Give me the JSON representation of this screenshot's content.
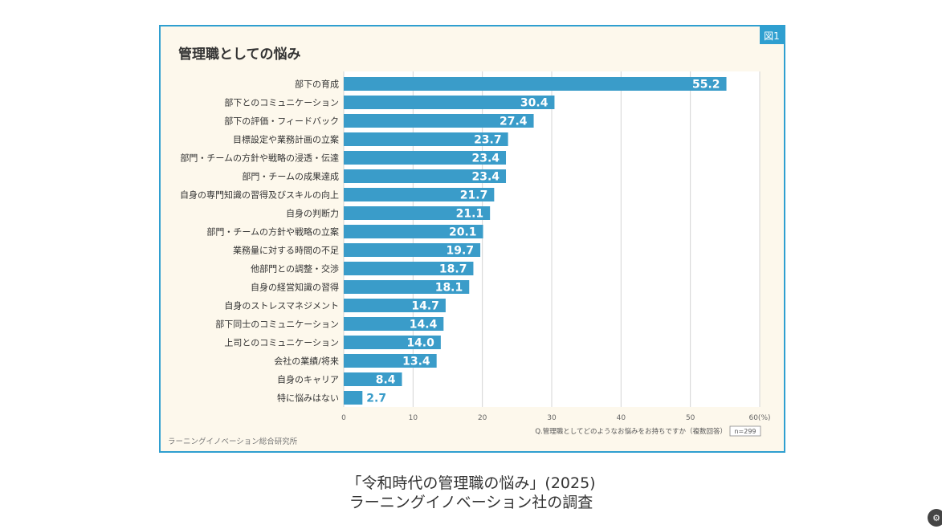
{
  "slide": {
    "figure_badge": "図1",
    "source": "ラーニングイノベーション総合研究所",
    "question": "Q.管理職としてどのようなお悩みをお持ちですか（複数回答）",
    "sample_size": "n=299"
  },
  "caption": {
    "line1": "「令和時代の管理職の悩み」(2025)",
    "line2": "ラーニングイノベーション社の調査"
  },
  "colors": {
    "bar": "#3a9cc9",
    "frame": "#2f9fd0",
    "background": "#fdf8ec"
  },
  "chart_data": {
    "type": "bar",
    "orientation": "horizontal",
    "title": "管理職としての悩み",
    "unit": "(%)",
    "categories": [
      "部下の育成",
      "部下とのコミュニケーション",
      "部下の評価・フィードバック",
      "目標設定や業務計画の立案",
      "部門・チームの方針や戦略の浸透・伝達",
      "部門・チームの成果達成",
      "自身の専門知識の習得及びスキルの向上",
      "自身の判断力",
      "部門・チームの方針や戦略の立案",
      "業務量に対する時間の不足",
      "他部門との調整・交渉",
      "自身の経営知識の習得",
      "自身のストレスマネジメント",
      "部下同士のコミュニケーション",
      "上司とのコミュニケーション",
      "会社の業績/将来",
      "自身のキャリア",
      "特に悩みはない"
    ],
    "values": [
      55.2,
      30.4,
      27.4,
      23.7,
      23.4,
      23.4,
      21.7,
      21.1,
      20.1,
      19.7,
      18.7,
      18.1,
      14.7,
      14.4,
      14.0,
      13.4,
      8.4,
      2.7
    ],
    "value_labels": [
      "55.2",
      "30.4",
      "27.4",
      "23.7",
      "23.4",
      "23.4",
      "21.7",
      "21.1",
      "20.1",
      "19.7",
      "18.7",
      "18.1",
      "14.7",
      "14.4",
      "14.0",
      "13.4",
      "8.4",
      "2.7"
    ],
    "xlim": [
      0,
      60
    ],
    "x_ticks": [
      "0",
      "10",
      "20",
      "30",
      "40",
      "50",
      "60(%)"
    ],
    "grid": true
  }
}
